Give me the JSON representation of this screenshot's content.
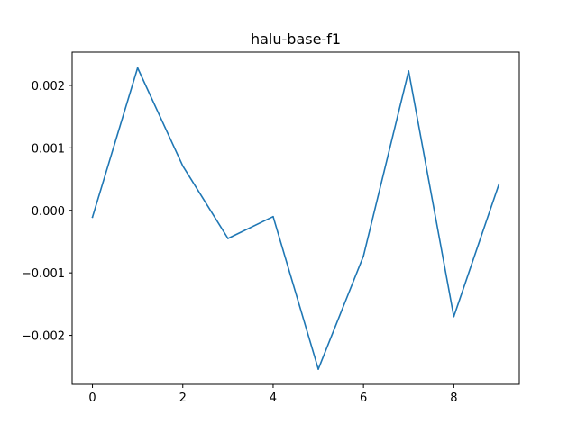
{
  "chart_data": {
    "type": "line",
    "title": "halu-base-f1",
    "xlabel": "",
    "ylabel": "",
    "x": [
      0,
      1,
      2,
      3,
      4,
      5,
      6,
      7,
      8,
      9
    ],
    "series": [
      {
        "color": "#1f77b4",
        "values": [
          -0.00011,
          0.00228,
          0.00071,
          -0.00045,
          -0.0001,
          -0.00254,
          -0.00073,
          0.00223,
          -0.0017,
          0.00042
        ]
      }
    ],
    "xlim": [
      -0.45,
      9.45
    ],
    "ylim": [
      -0.002784,
      0.002532
    ],
    "x_ticks": [
      0,
      2,
      4,
      6,
      8
    ],
    "x_tick_labels": [
      "0",
      "2",
      "4",
      "6",
      "8"
    ],
    "y_ticks": [
      -0.002,
      -0.001,
      0.0,
      0.001,
      0.002
    ],
    "y_tick_labels": [
      "−0.002",
      "−0.001",
      "0.000",
      "0.001",
      "0.002"
    ],
    "grid": false,
    "legend": "none"
  }
}
